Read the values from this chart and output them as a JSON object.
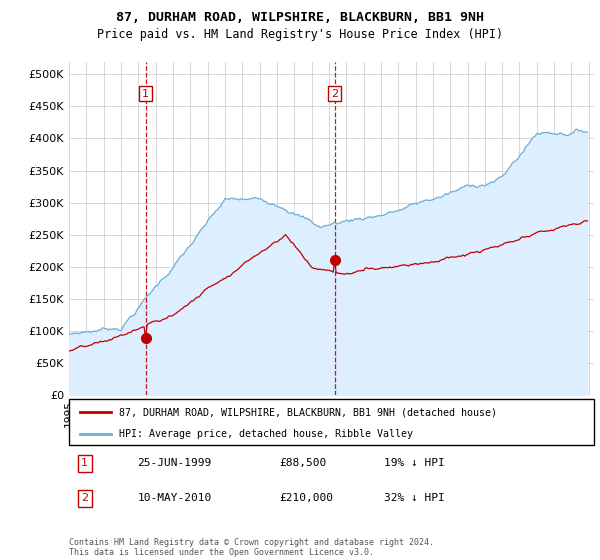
{
  "title1": "87, DURHAM ROAD, WILPSHIRE, BLACKBURN, BB1 9NH",
  "title2": "Price paid vs. HM Land Registry's House Price Index (HPI)",
  "legend_label1": "87, DURHAM ROAD, WILPSHIRE, BLACKBURN, BB1 9NH (detached house)",
  "legend_label2": "HPI: Average price, detached house, Ribble Valley",
  "sale1_date": "25-JUN-1999",
  "sale1_price": 88500,
  "sale1_label": "19% ↓ HPI",
  "sale2_date": "10-MAY-2010",
  "sale2_price": 210000,
  "sale2_label": "32% ↓ HPI",
  "footnote": "Contains HM Land Registry data © Crown copyright and database right 2024.\nThis data is licensed under the Open Government Licence v3.0.",
  "hpi_color": "#6baed6",
  "hpi_fill_color": "#ddeeff",
  "sale_color": "#c00000",
  "vline_color": "#c00000",
  "ylim": [
    0,
    520000
  ],
  "yticks": [
    0,
    50000,
    100000,
    150000,
    200000,
    250000,
    300000,
    350000,
    400000,
    450000,
    500000
  ],
  "background_color": "#ffffff",
  "grid_color": "#d0d0d0",
  "sale1_t": 1999.458,
  "sale2_t": 2010.333
}
